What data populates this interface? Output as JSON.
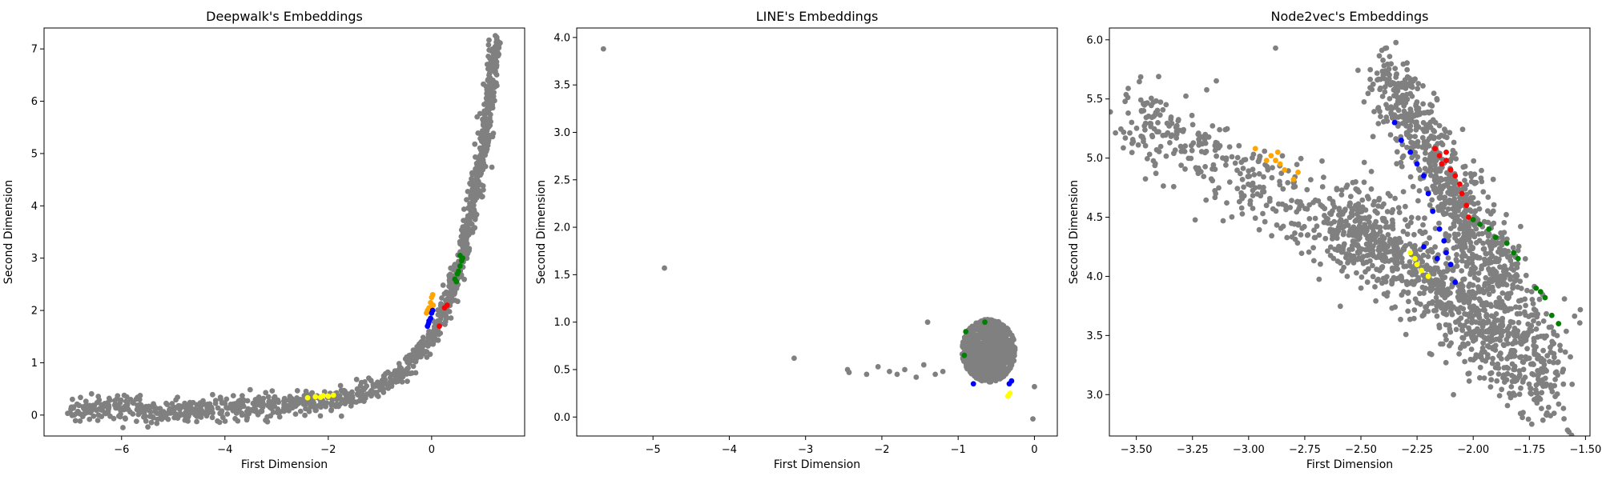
{
  "chart_data": [
    {
      "type": "scatter",
      "title": "Deepwalk's Embeddings",
      "xlabel": "First Dimension",
      "ylabel": "Second Dimension",
      "xlim": [
        -7.5,
        1.8
      ],
      "ylim": [
        -0.4,
        7.4
      ],
      "xticks": [
        -6,
        -4,
        -2,
        0
      ],
      "xtick_labels": [
        "−6",
        "−4",
        "−2",
        "0"
      ],
      "yticks": [
        0,
        1,
        2,
        3,
        4,
        5,
        6,
        7
      ],
      "ytick_labels": [
        "0",
        "1",
        "2",
        "3",
        "4",
        "5",
        "6",
        "7"
      ],
      "grid": false,
      "point_color": "#808080",
      "background_cloud": {
        "kind": "curve_band",
        "color": "#808080",
        "curve": [
          [
            -7.0,
            0.05
          ],
          [
            -6.5,
            0.15
          ],
          [
            -6.0,
            0.18
          ],
          [
            -5.5,
            0.08
          ],
          [
            -5.0,
            0.08
          ],
          [
            -4.0,
            0.12
          ],
          [
            -3.0,
            0.18
          ],
          [
            -2.0,
            0.3
          ],
          [
            -1.5,
            0.38
          ],
          [
            -1.0,
            0.55
          ],
          [
            -0.6,
            0.8
          ],
          [
            -0.3,
            1.1
          ],
          [
            0.0,
            1.5
          ],
          [
            0.2,
            1.9
          ],
          [
            0.4,
            2.4
          ],
          [
            0.6,
            3.1
          ],
          [
            0.8,
            4.0
          ],
          [
            1.0,
            5.2
          ],
          [
            1.1,
            6.0
          ],
          [
            1.25,
            7.1
          ]
        ],
        "spread": 0.12
      },
      "series": [
        {
          "color": "#ffa500",
          "x": [
            -0.1,
            -0.05,
            -0.02,
            0.0,
            0.02,
            -0.08,
            0.03
          ],
          "y": [
            1.95,
            2.05,
            2.15,
            2.25,
            2.3,
            2.0,
            2.1
          ]
        },
        {
          "color": "#0000ff",
          "x": [
            -0.08,
            -0.05,
            -0.02,
            0.0,
            0.02,
            -0.06
          ],
          "y": [
            1.7,
            1.8,
            1.85,
            1.95,
            2.0,
            1.75
          ]
        },
        {
          "color": "#ff0000",
          "x": [
            0.15,
            0.25,
            0.3
          ],
          "y": [
            1.7,
            2.05,
            2.1
          ]
        },
        {
          "color": "#008000",
          "x": [
            0.45,
            0.5,
            0.55,
            0.58,
            0.6,
            0.55,
            0.48,
            0.52
          ],
          "y": [
            2.6,
            2.7,
            2.85,
            2.95,
            3.0,
            3.05,
            2.55,
            2.75
          ]
        },
        {
          "color": "#ffff00",
          "x": [
            -2.4,
            -2.25,
            -2.1,
            -2.0,
            -1.9,
            -2.15
          ],
          "y": [
            0.33,
            0.35,
            0.37,
            0.36,
            0.38,
            0.34
          ]
        }
      ]
    },
    {
      "type": "scatter",
      "title": "LINE's Embeddings",
      "xlabel": "First Dimension",
      "ylabel": "Second Dimension",
      "xlim": [
        -6.0,
        0.3
      ],
      "ylim": [
        -0.2,
        4.1
      ],
      "xticks": [
        -5,
        -4,
        -3,
        -2,
        -1,
        0
      ],
      "xtick_labels": [
        "−5",
        "−4",
        "−3",
        "−2",
        "−1",
        "0"
      ],
      "yticks": [
        0.0,
        0.5,
        1.0,
        1.5,
        2.0,
        2.5,
        3.0,
        3.5,
        4.0
      ],
      "ytick_labels": [
        "0.0",
        "0.5",
        "1.0",
        "1.5",
        "2.0",
        "2.5",
        "3.0",
        "3.5",
        "4.0"
      ],
      "grid": false,
      "point_color": "#808080",
      "background_cloud": {
        "kind": "blob",
        "color": "#808080",
        "center": [
          -0.6,
          0.7
        ],
        "radius": [
          0.35,
          0.33
        ]
      },
      "outliers": {
        "color": "#808080",
        "x": [
          -5.65,
          -4.85,
          -3.15,
          -2.45,
          -2.43,
          -2.2,
          -2.05,
          -1.9,
          -1.8,
          -1.7,
          -1.55,
          -1.45,
          -1.4,
          -1.3,
          -1.2,
          -0.02,
          0.0
        ],
        "y": [
          3.88,
          1.57,
          0.62,
          0.5,
          0.47,
          0.45,
          0.53,
          0.48,
          0.45,
          0.5,
          0.42,
          0.55,
          1.0,
          0.45,
          0.48,
          -0.02,
          0.32
        ]
      },
      "series": [
        {
          "color": "#008000",
          "x": [
            -0.65,
            -0.92,
            -0.9
          ],
          "y": [
            1.0,
            0.65,
            0.9
          ]
        },
        {
          "color": "#0000ff",
          "x": [
            -0.3,
            -0.33,
            -0.8
          ],
          "y": [
            0.38,
            0.35,
            0.35
          ]
        },
        {
          "color": "#ffff00",
          "x": [
            -0.35,
            -0.32
          ],
          "y": [
            0.22,
            0.25
          ]
        }
      ]
    },
    {
      "type": "scatter",
      "title": "Node2vec's Embeddings",
      "xlabel": "First Dimension",
      "ylabel": "Second Dimension",
      "xlim": [
        -3.62,
        -1.48
      ],
      "ylim": [
        2.65,
        6.1
      ],
      "xticks": [
        -3.5,
        -3.25,
        -3.0,
        -2.75,
        -2.5,
        -2.25,
        -2.0,
        -1.75,
        -1.5
      ],
      "xtick_labels": [
        "−3.50",
        "−3.25",
        "−3.00",
        "−2.75",
        "−2.50",
        "−2.25",
        "−2.00",
        "−1.75",
        "−1.50"
      ],
      "yticks": [
        3.0,
        3.5,
        4.0,
        4.5,
        5.0,
        5.5,
        6.0
      ],
      "ytick_labels": [
        "3.0",
        "3.5",
        "4.0",
        "4.5",
        "5.0",
        "5.5",
        "6.0"
      ],
      "grid": false,
      "point_color": "#808080",
      "background_cloud": {
        "kind": "bands",
        "color": "#808080",
        "bands": [
          {
            "from": [
              -3.55,
              5.38
            ],
            "to": [
              -1.6,
              3.4
            ],
            "spread": 0.18
          },
          {
            "from": [
              -2.4,
              5.75
            ],
            "to": [
              -1.85,
              3.9
            ],
            "spread": 0.16
          },
          {
            "from": [
              -2.6,
              4.6
            ],
            "to": [
              -1.65,
              3.0
            ],
            "spread": 0.2
          }
        ]
      },
      "outliers": {
        "color": "#808080",
        "x": [
          -2.88,
          -1.58
        ],
        "y": [
          5.93,
          2.7
        ]
      },
      "series": [
        {
          "color": "#ffa500",
          "x": [
            -2.97,
            -2.9,
            -2.88,
            -2.86,
            -2.84,
            -2.8,
            -2.78,
            -2.92,
            -2.87
          ],
          "y": [
            5.08,
            5.02,
            4.98,
            4.95,
            4.9,
            4.82,
            4.88,
            4.98,
            5.05
          ]
        },
        {
          "color": "#ff0000",
          "x": [
            -2.17,
            -2.15,
            -2.12,
            -2.1,
            -2.08,
            -2.06,
            -2.05,
            -2.03,
            -2.02,
            -2.12,
            -2.14
          ],
          "y": [
            5.08,
            5.02,
            4.98,
            4.9,
            4.85,
            4.78,
            4.7,
            4.6,
            4.5,
            5.05,
            4.95
          ]
        },
        {
          "color": "#0000ff",
          "x": [
            -2.35,
            -2.32,
            -2.28,
            -2.25,
            -2.22,
            -2.2,
            -2.18,
            -2.15,
            -2.13,
            -2.12,
            -2.1,
            -2.08,
            -2.22,
            -2.16
          ],
          "y": [
            5.3,
            5.15,
            5.05,
            4.95,
            4.85,
            4.7,
            4.55,
            4.4,
            4.3,
            4.2,
            4.1,
            3.95,
            4.25,
            4.15
          ]
        },
        {
          "color": "#008000",
          "x": [
            -2.0,
            -1.97,
            -1.93,
            -1.9,
            -1.85,
            -1.82,
            -1.8,
            -1.72,
            -1.7,
            -1.68,
            -1.65,
            -1.62
          ],
          "y": [
            4.48,
            4.44,
            4.4,
            4.33,
            4.28,
            4.2,
            4.15,
            3.9,
            3.87,
            3.82,
            3.67,
            3.6
          ]
        },
        {
          "color": "#ffff00",
          "x": [
            -2.28,
            -2.26,
            -2.25,
            -2.23,
            -2.2
          ],
          "y": [
            4.2,
            4.15,
            4.1,
            4.05,
            4.0
          ]
        }
      ]
    }
  ]
}
